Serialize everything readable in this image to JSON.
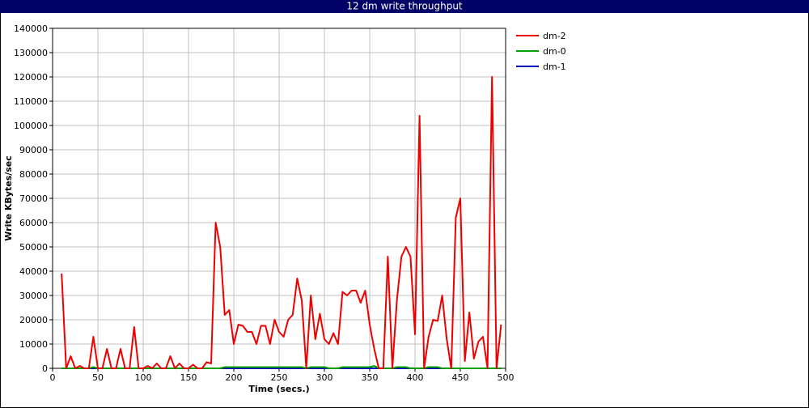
{
  "chart_data": {
    "type": "line",
    "title": "12 dm write throughput",
    "x_label": "Time (secs.)",
    "y_label": "Write KBytes/sec",
    "x": [
      10,
      15,
      20,
      25,
      30,
      35,
      40,
      45,
      50,
      55,
      60,
      65,
      70,
      75,
      80,
      85,
      90,
      95,
      100,
      105,
      110,
      115,
      120,
      125,
      130,
      135,
      140,
      145,
      150,
      155,
      160,
      165,
      170,
      175,
      180,
      185,
      190,
      195,
      200,
      205,
      210,
      215,
      220,
      225,
      230,
      235,
      240,
      245,
      250,
      255,
      260,
      265,
      270,
      275,
      280,
      285,
      290,
      295,
      300,
      305,
      310,
      315,
      320,
      325,
      330,
      335,
      340,
      345,
      350,
      355,
      360,
      365,
      370,
      375,
      380,
      385,
      390,
      395,
      400,
      405,
      410,
      415,
      420,
      425,
      430,
      435,
      440,
      445,
      450,
      455,
      460,
      465,
      470,
      475,
      480,
      485,
      490,
      495
    ],
    "series": [
      {
        "name": "dm-2",
        "color": "#ee0000",
        "values": [
          39000,
          0,
          5000,
          0,
          1000,
          0,
          0,
          13000,
          0,
          0,
          8000,
          0,
          0,
          8000,
          0,
          0,
          17000,
          0,
          0,
          1000,
          0,
          2000,
          0,
          0,
          5000,
          0,
          2000,
          0,
          0,
          1500,
          0,
          0,
          2500,
          2000,
          60000,
          50000,
          22000,
          24000,
          10000,
          18000,
          17500,
          15000,
          15000,
          10000,
          17500,
          17500,
          10000,
          20000,
          15000,
          13000,
          20000,
          22000,
          37000,
          28000,
          0,
          30000,
          12000,
          22500,
          12000,
          10000,
          14500,
          10000,
          31500,
          30000,
          32000,
          32000,
          27000,
          32000,
          18000,
          8000,
          0,
          0,
          46000,
          0,
          28000,
          46000,
          50000,
          46000,
          14000,
          104000,
          0,
          13000,
          20000,
          19500,
          30000,
          12000,
          0,
          62000,
          70000,
          3000,
          23000,
          4000,
          11000,
          13000,
          0,
          120000,
          0,
          18000
        ]
      },
      {
        "name": "dm-0",
        "color": "#00a000",
        "values": [
          0,
          0,
          0,
          0,
          0,
          0,
          0,
          500,
          0,
          0,
          0,
          0,
          0,
          0,
          0,
          0,
          0,
          0,
          0,
          0,
          0,
          0,
          0,
          0,
          0,
          0,
          0,
          0,
          0,
          0,
          0,
          0,
          0,
          0,
          0,
          0,
          500,
          500,
          500,
          500,
          500,
          500,
          500,
          500,
          500,
          500,
          500,
          500,
          500,
          500,
          500,
          500,
          500,
          500,
          0,
          500,
          500,
          500,
          500,
          0,
          0,
          0,
          500,
          500,
          500,
          500,
          500,
          500,
          500,
          1000,
          0,
          0,
          0,
          0,
          500,
          500,
          500,
          0,
          0,
          0,
          0,
          500,
          500,
          500,
          0,
          0,
          0,
          0,
          0,
          0,
          0,
          0,
          0,
          0,
          0,
          0,
          0,
          0
        ]
      },
      {
        "name": "dm-1",
        "color": "#0000c0",
        "values": [
          0,
          0,
          0,
          0,
          0,
          0,
          0,
          0,
          0,
          0,
          0,
          0,
          0,
          0,
          0,
          0,
          0,
          0,
          0,
          0,
          0,
          0,
          0,
          0,
          0,
          0,
          0,
          0,
          0,
          0,
          0,
          0,
          0,
          0,
          0,
          0,
          0,
          0,
          0,
          0,
          0,
          0,
          0,
          0,
          0,
          0,
          0,
          0,
          0,
          0,
          0,
          0,
          0,
          0,
          0,
          0,
          0,
          0,
          0,
          0,
          0,
          0,
          0,
          0,
          0,
          0,
          0,
          0,
          0,
          0,
          0,
          0,
          0,
          0,
          0,
          0,
          0,
          0,
          0,
          0,
          0,
          0,
          0,
          0,
          0,
          0,
          0,
          0,
          0,
          0,
          0,
          0,
          0,
          0,
          0,
          0,
          0,
          0
        ]
      }
    ],
    "xlim": [
      0,
      500
    ],
    "xticks": [
      0,
      50,
      100,
      150,
      200,
      250,
      300,
      350,
      400,
      450,
      500
    ],
    "ylim": [
      0,
      140000
    ],
    "yticks": [
      0,
      10000,
      20000,
      30000,
      40000,
      50000,
      60000,
      70000,
      80000,
      90000,
      100000,
      110000,
      120000,
      130000,
      140000
    ],
    "grid": true,
    "legend": "right"
  }
}
